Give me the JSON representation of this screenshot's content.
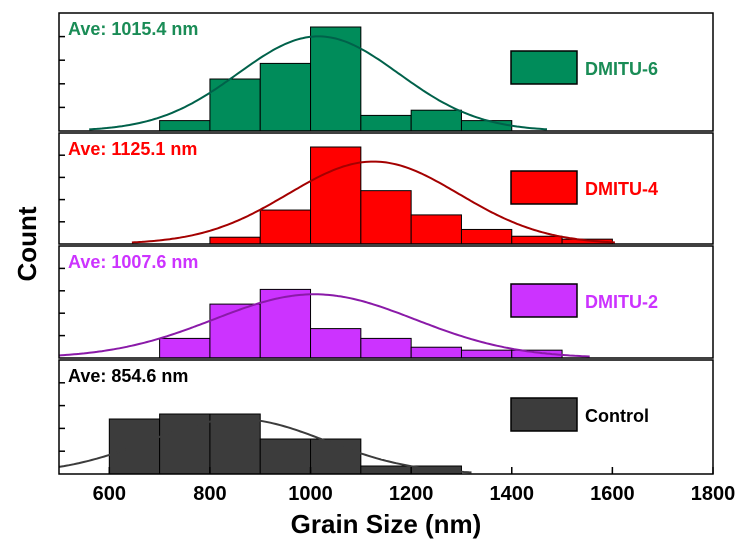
{
  "chart_data": {
    "type": "bar",
    "xlabel": "Grain Size (nm)",
    "ylabel": "Count",
    "xlim": [
      500,
      1800
    ],
    "xticks": [
      600,
      800,
      1000,
      1200,
      1400,
      1600,
      1800
    ],
    "bin_width": 100,
    "grid": false,
    "legend_position": "right",
    "panels": [
      {
        "name": "DMITU-6",
        "annotation": "Ave: 1015.4 nm",
        "color": "#008c5a",
        "curve_color": "#00614a",
        "label_color": "#1a8c56",
        "ylim": [
          0,
          10
        ],
        "bins": [
          700,
          800,
          900,
          1000,
          1100,
          1200,
          1300
        ],
        "counts": [
          1,
          5,
          6.5,
          10,
          1.5,
          2,
          1
        ],
        "fit": {
          "mean": 1015.4,
          "sigma": 160,
          "peak": 9.1
        }
      },
      {
        "name": "DMITU-4",
        "annotation": "Ave: 1125.1 nm",
        "color": "#ff0000",
        "curve_color": "#a40000",
        "label_color": "#ff0000",
        "ylim": [
          0,
          10
        ],
        "bins": [
          800,
          900,
          1000,
          1100,
          1200,
          1300,
          1400,
          1500
        ],
        "counts": [
          0.7,
          3.5,
          10,
          5.5,
          3,
          1.5,
          0.8,
          0.5
        ],
        "fit": {
          "mean": 1125.1,
          "sigma": 170,
          "peak": 8.5
        }
      },
      {
        "name": "DMITU-2",
        "annotation": "Ave: 1007.6 nm",
        "color": "#cc33ff",
        "curve_color": "#8a1aa8",
        "label_color": "#cc33ff",
        "ylim": [
          0,
          10
        ],
        "bins": [
          700,
          800,
          900,
          1000,
          1100,
          1200,
          1300,
          1400
        ],
        "counts": [
          2,
          5.5,
          7,
          3,
          2,
          1.1,
          0.8,
          0.8
        ],
        "fit": {
          "mean": 1007.6,
          "sigma": 200,
          "peak": 6.5
        }
      },
      {
        "name": "Control",
        "annotation": "Ave: 854.6 nm",
        "color": "#3c3c3c",
        "curve_color": "#3c3c3c",
        "label_color": "#000000",
        "ylim": [
          0,
          10
        ],
        "bins": [
          600,
          700,
          800,
          900,
          1000,
          1100,
          1200
        ],
        "counts": [
          5.5,
          6,
          6,
          3.5,
          3.5,
          0.8,
          0.8
        ],
        "fit": {
          "mean": 854.6,
          "sigma": 175,
          "peak": 5.5
        }
      }
    ]
  }
}
